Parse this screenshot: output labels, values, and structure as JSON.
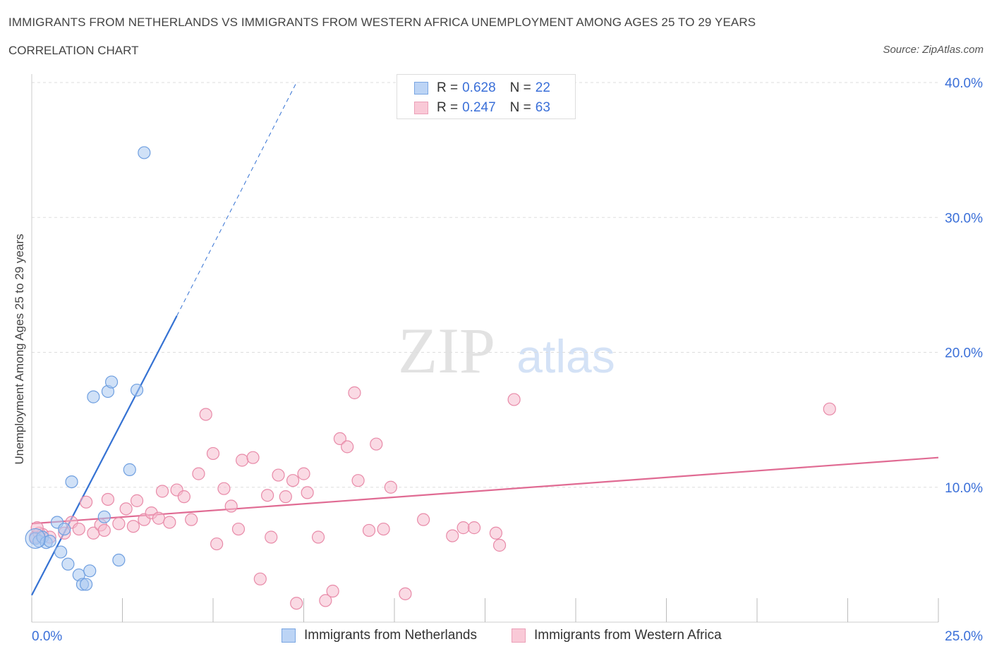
{
  "header": {
    "title": "IMMIGRANTS FROM NETHERLANDS VS IMMIGRANTS FROM WESTERN AFRICA UNEMPLOYMENT AMONG AGES 25 TO 29 YEARS",
    "subtitle": "CORRELATION CHART",
    "source": "Source: ZipAtlas.com"
  },
  "watermark": {
    "zip": "ZIP",
    "atlas": "atlas"
  },
  "legend_top": {
    "rows": [
      {
        "r_label": "R =",
        "r_value": "0.628",
        "n_label": "N =",
        "n_value": "22"
      },
      {
        "r_label": "R =",
        "r_value": "0.247",
        "n_label": "N =",
        "n_value": "63"
      }
    ]
  },
  "legend_bottom": {
    "items": [
      {
        "label": "Immigrants from Netherlands"
      },
      {
        "label": "Immigrants from Western Africa"
      }
    ]
  },
  "colors": {
    "blue_fill": "#aac8f0",
    "blue_stroke": "#6f9fe0",
    "blue_line": "#3572d3",
    "pink_fill": "#f6bccd",
    "pink_stroke": "#e88aa8",
    "pink_line": "#e06b93",
    "axis_value": "#3a6fd8",
    "grid": "#dddddd"
  },
  "chart_data": {
    "type": "scatter",
    "title": "IMMIGRANTS FROM NETHERLANDS VS IMMIGRANTS FROM WESTERN AFRICA UNEMPLOYMENT AMONG AGES 25 TO 29 YEARS",
    "xlabel": "",
    "ylabel": "Unemployment Among Ages 25 to 29 years",
    "xlim": [
      0,
      25
    ],
    "ylim": [
      0,
      40
    ],
    "x_tick_labels": [
      "0.0%",
      "25.0%"
    ],
    "y_ticks": [
      10,
      20,
      30,
      40
    ],
    "y_tick_labels": [
      "10.0%",
      "20.0%",
      "30.0%",
      "40.0%"
    ],
    "grid": true,
    "legend": "bottom",
    "series": [
      {
        "name": "Immigrants from Netherlands",
        "points": [
          [
            0.1,
            6.2
          ],
          [
            0.2,
            6.0
          ],
          [
            0.3,
            6.3
          ],
          [
            0.4,
            5.9
          ],
          [
            0.5,
            6.0
          ],
          [
            0.7,
            7.4
          ],
          [
            0.8,
            5.2
          ],
          [
            0.9,
            6.9
          ],
          [
            1.0,
            4.3
          ],
          [
            1.1,
            10.4
          ],
          [
            1.3,
            3.5
          ],
          [
            1.4,
            2.8
          ],
          [
            1.5,
            2.8
          ],
          [
            1.6,
            3.8
          ],
          [
            1.7,
            16.7
          ],
          [
            2.0,
            7.8
          ],
          [
            2.1,
            17.1
          ],
          [
            2.2,
            17.8
          ],
          [
            2.4,
            4.6
          ],
          [
            2.7,
            11.3
          ],
          [
            2.9,
            17.2
          ],
          [
            3.1,
            34.8
          ]
        ],
        "trend": {
          "x0": 0,
          "y0": 2.0,
          "x1": 4.0,
          "y1": 22.7,
          "dashed_to": [
            7.3,
            40.0
          ]
        }
      },
      {
        "name": "Immigrants from Western Africa",
        "points": [
          [
            0.1,
            6.3
          ],
          [
            0.2,
            6.6
          ],
          [
            0.3,
            6.5
          ],
          [
            0.5,
            6.3
          ],
          [
            0.9,
            6.6
          ],
          [
            1.1,
            7.4
          ],
          [
            1.3,
            6.9
          ],
          [
            1.5,
            8.9
          ],
          [
            1.7,
            6.6
          ],
          [
            1.9,
            7.2
          ],
          [
            2.0,
            6.8
          ],
          [
            2.1,
            9.1
          ],
          [
            2.4,
            7.3
          ],
          [
            2.6,
            8.4
          ],
          [
            2.8,
            7.1
          ],
          [
            2.9,
            9.0
          ],
          [
            3.1,
            7.6
          ],
          [
            3.3,
            8.1
          ],
          [
            3.5,
            7.7
          ],
          [
            3.6,
            9.7
          ],
          [
            3.8,
            7.4
          ],
          [
            4.0,
            9.8
          ],
          [
            4.2,
            9.3
          ],
          [
            4.4,
            7.6
          ],
          [
            4.6,
            11.0
          ],
          [
            4.8,
            15.4
          ],
          [
            5.0,
            12.5
          ],
          [
            5.1,
            5.8
          ],
          [
            5.3,
            9.9
          ],
          [
            5.5,
            8.6
          ],
          [
            5.7,
            6.9
          ],
          [
            5.8,
            12.0
          ],
          [
            6.1,
            12.2
          ],
          [
            6.3,
            3.2
          ],
          [
            6.5,
            9.4
          ],
          [
            6.6,
            6.3
          ],
          [
            6.8,
            10.9
          ],
          [
            7.0,
            9.3
          ],
          [
            7.2,
            10.5
          ],
          [
            7.3,
            1.4
          ],
          [
            7.5,
            11.0
          ],
          [
            7.6,
            9.6
          ],
          [
            7.9,
            6.3
          ],
          [
            8.1,
            1.6
          ],
          [
            8.3,
            2.3
          ],
          [
            8.5,
            13.6
          ],
          [
            8.7,
            13.0
          ],
          [
            8.9,
            17.0
          ],
          [
            9.0,
            10.5
          ],
          [
            9.3,
            6.8
          ],
          [
            9.5,
            13.2
          ],
          [
            9.7,
            6.9
          ],
          [
            9.9,
            10.0
          ],
          [
            10.3,
            2.1
          ],
          [
            10.8,
            7.6
          ],
          [
            11.6,
            6.4
          ],
          [
            11.9,
            7.0
          ],
          [
            12.2,
            7.0
          ],
          [
            12.8,
            6.6
          ],
          [
            12.9,
            5.7
          ],
          [
            13.3,
            16.5
          ],
          [
            22.0,
            15.8
          ],
          [
            0.15,
            7.0
          ]
        ],
        "trend": {
          "x0": 0,
          "y0": 7.3,
          "x1": 25,
          "y1": 12.2
        }
      }
    ]
  }
}
